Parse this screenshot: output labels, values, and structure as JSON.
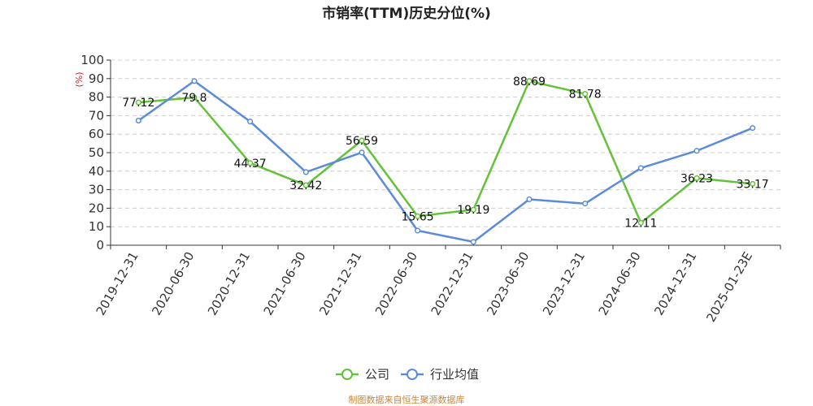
{
  "footer": "制图数据来自恒生聚源数据库",
  "chart_data": {
    "type": "line",
    "title": "市销率(TTM)历史分位(%)",
    "xlabel": "",
    "ylabel": "(%)",
    "categories": [
      "2019-12-31",
      "2020-06-30",
      "2020-12-31",
      "2021-06-30",
      "2021-12-31",
      "2022-06-30",
      "2022-12-31",
      "2023-06-30",
      "2023-12-31",
      "2024-06-30",
      "2024-12-31",
      "2025-01-23E"
    ],
    "ylim": [
      0,
      100
    ],
    "yticks": [
      0,
      10,
      20,
      30,
      40,
      50,
      60,
      70,
      80,
      90,
      100
    ],
    "grid": true,
    "legend_position": "bottom",
    "series": [
      {
        "name": "公司",
        "color": "#64c13a",
        "data_labels": true,
        "values": [
          77.12,
          79.8,
          44.37,
          32.42,
          56.59,
          15.65,
          19.19,
          88.69,
          81.78,
          12.11,
          36.23,
          33.17
        ]
      },
      {
        "name": "行业均值",
        "color": "#5b8bd9",
        "data_labels": false,
        "values": [
          67.3,
          88.7,
          66.8,
          39.5,
          50.1,
          7.9,
          1.8,
          24.8,
          22.5,
          41.7,
          51.0,
          63.3
        ]
      }
    ]
  }
}
